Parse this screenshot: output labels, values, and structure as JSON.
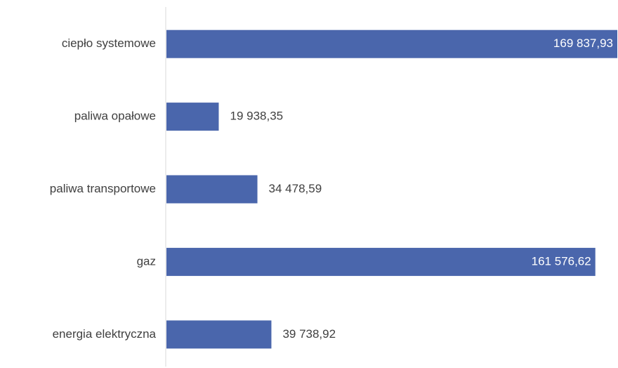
{
  "chart_data": {
    "type": "bar",
    "orientation": "horizontal",
    "categories": [
      "ciepło systemowe",
      "paliwa opałowe",
      "paliwa transportowe",
      "gaz",
      "energia elektryczna"
    ],
    "values": [
      169837.93,
      19938.35,
      34478.59,
      161576.62,
      39738.92
    ],
    "value_labels": [
      "169 837,93",
      "19 938,35",
      "34 478,59",
      "161 576,62",
      "39 738,92"
    ],
    "color": "#4a66ac"
  }
}
